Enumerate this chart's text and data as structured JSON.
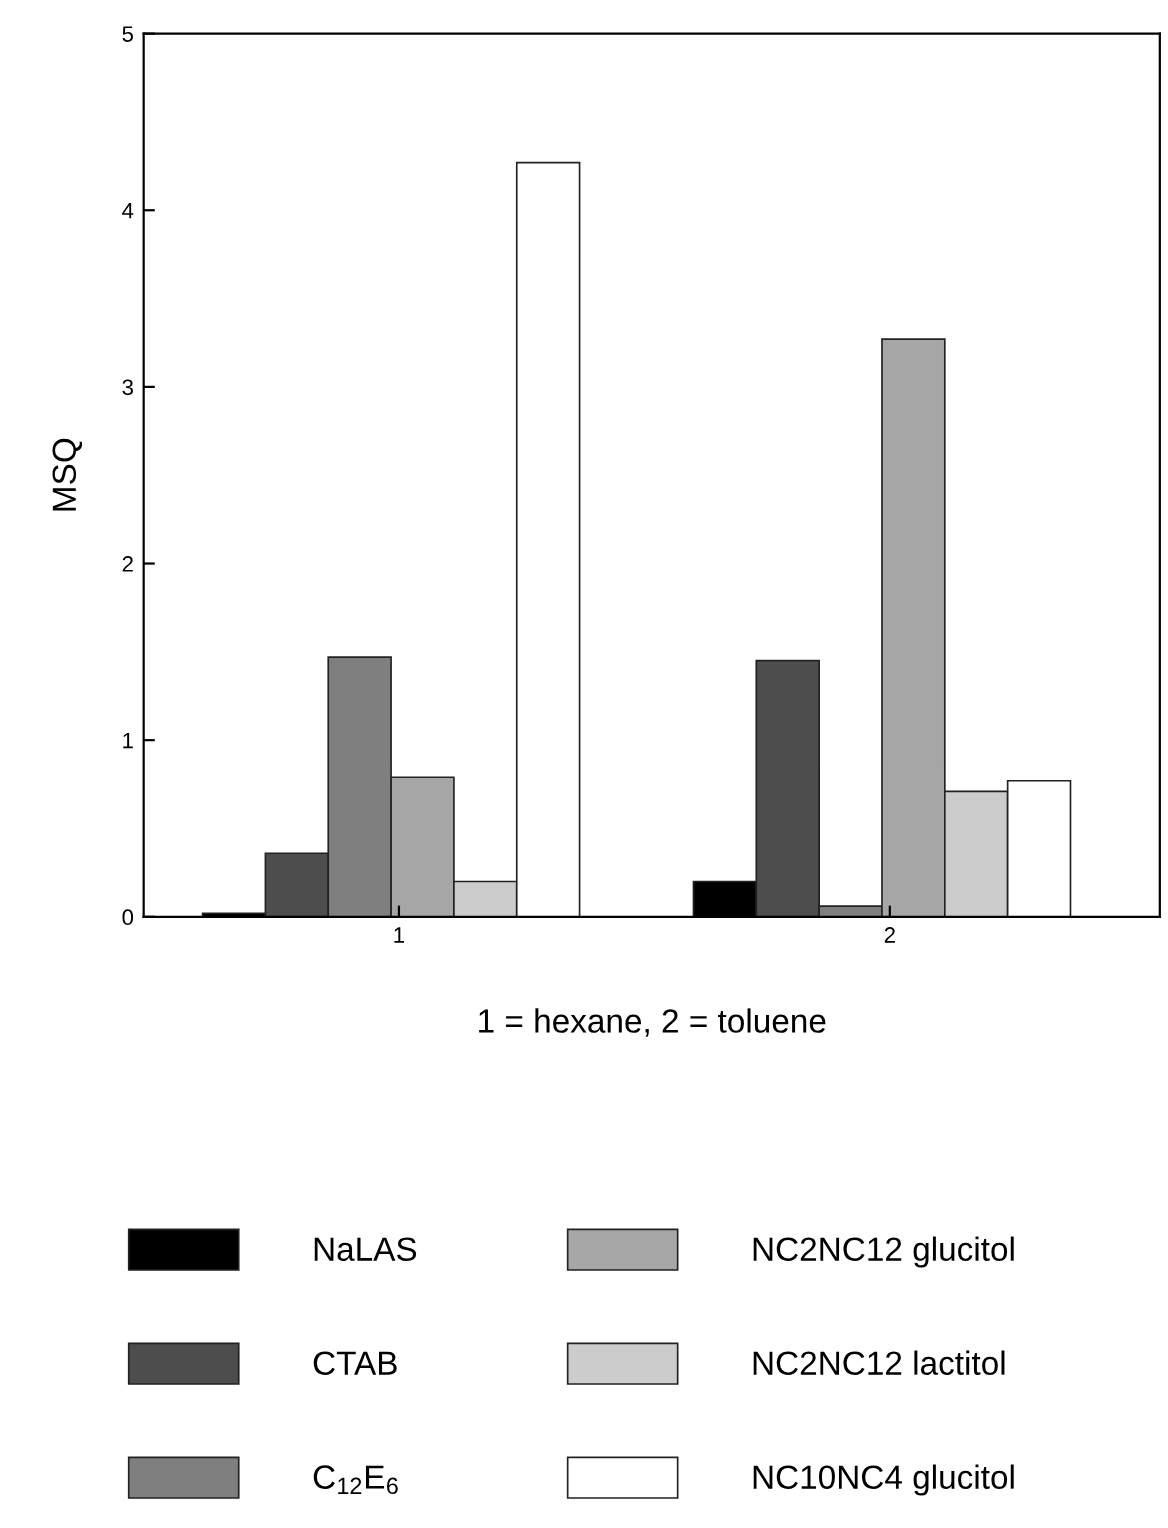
{
  "chart_data": {
    "type": "bar",
    "categories": [
      "1",
      "2"
    ],
    "xlabel": "1 = hexane, 2 = toluene",
    "ylabel": "MSQ",
    "ylim": [
      0,
      5
    ],
    "yticks": [
      0,
      1,
      2,
      3,
      4,
      5
    ],
    "grid": false,
    "legend": "bottom",
    "series": [
      {
        "name": "NaLAS",
        "color": "#000000",
        "values": [
          0.02,
          0.2
        ]
      },
      {
        "name": "CTAB",
        "color": "#4d4d4d",
        "values": [
          0.36,
          1.45
        ]
      },
      {
        "name": "C$_{12}$E$_{6}$",
        "color": "#7f7f7f",
        "values": [
          1.47,
          0.06
        ]
      },
      {
        "name": "NC2NC12 glucitol",
        "color": "#a6a6a6",
        "values": [
          0.79,
          3.27
        ]
      },
      {
        "name": "NC2NC12 lactitol",
        "color": "#cccccc",
        "values": [
          0.2,
          0.71
        ]
      },
      {
        "name": "NC10NC4 glucitol",
        "color": "#ffffff",
        "values": [
          4.27,
          0.77
        ]
      }
    ]
  }
}
